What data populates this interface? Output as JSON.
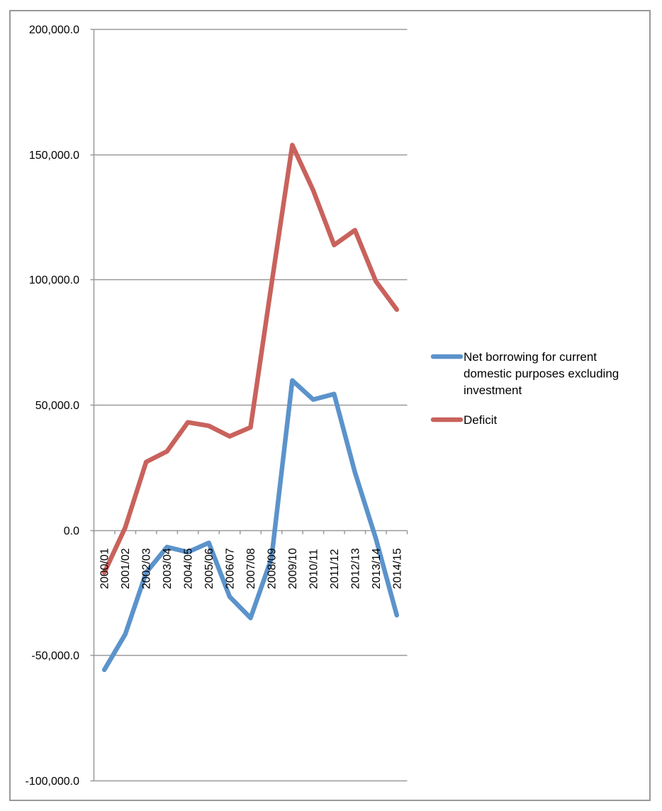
{
  "chart_data": {
    "type": "line",
    "title": "",
    "xlabel": "",
    "ylabel": "",
    "ylim": [
      -100000,
      200000
    ],
    "y_ticks": [
      -100000,
      -50000,
      0,
      50000,
      100000,
      150000,
      200000
    ],
    "y_tick_labels": [
      "-100,000.0",
      "-50,000.0",
      "0.0",
      "50,000.0",
      "100,000.0",
      "150,000.0",
      "200,000.0"
    ],
    "grid": "horizontal",
    "legend_position": "right",
    "categories": [
      "2000/01",
      "2001/02",
      "2002/03",
      "2003/04",
      "2004/05",
      "2005/06",
      "2006/07",
      "2007/08",
      "2008/09",
      "2009/10",
      "2010/11",
      "2011/12",
      "2012/13",
      "2013/14",
      "2014/15"
    ],
    "series": [
      {
        "name": "Net borrowing for current domestic purposes excluding investment",
        "legend_lines": [
          "Net borrowing for current",
          "domestic purposes excluding",
          "investment"
        ],
        "color": "#5B93CB",
        "values": [
          -55800,
          -41600,
          -17000,
          -6800,
          -8800,
          -5100,
          -26600,
          -35100,
          -11300,
          59700,
          52100,
          54300,
          23000,
          -3400,
          -34000
        ]
      },
      {
        "name": "Deficit",
        "legend_lines": [
          "Deficit"
        ],
        "color": "#C9625C",
        "values": [
          -17000,
          1000,
          27200,
          31400,
          43000,
          41600,
          37400,
          41000,
          98000,
          153700,
          135600,
          113800,
          119700,
          99300,
          88000
        ]
      }
    ]
  }
}
